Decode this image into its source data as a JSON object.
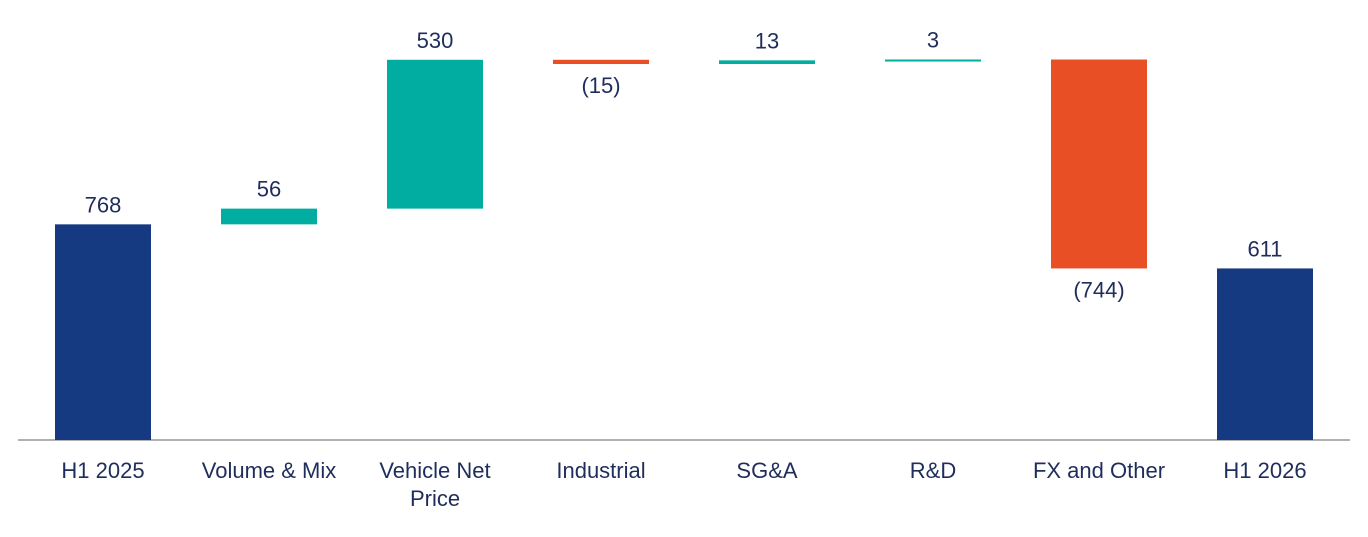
{
  "chart_data": {
    "type": "bar",
    "subtype": "waterfall",
    "categories": [
      "H1 2025",
      "Volume & Mix",
      "Vehicle Net Price",
      "Industrial",
      "SG&A",
      "R&D",
      "FX and Other",
      "H1 2026"
    ],
    "category_label_lines": [
      [
        "H1 2025"
      ],
      [
        "Volume & Mix"
      ],
      [
        "Vehicle Net",
        "Price"
      ],
      [
        "Industrial"
      ],
      [
        "SG&A"
      ],
      [
        "R&D"
      ],
      [
        "FX and Other"
      ],
      [
        "H1 2026"
      ]
    ],
    "values": [
      768,
      56,
      530,
      -15,
      13,
      3,
      -744,
      611
    ],
    "kinds": [
      "total",
      "delta",
      "delta",
      "delta",
      "delta",
      "delta",
      "delta",
      "total"
    ],
    "value_labels": [
      "768",
      "56",
      "530",
      "(15)",
      "13",
      "3",
      "(744)",
      "611"
    ],
    "xlabel": "",
    "ylabel": "",
    "title": "",
    "ylim": [
      0,
      1370
    ],
    "grid": false,
    "legend": "none",
    "colors": {
      "total": "#163a82",
      "increase": "#00ada0",
      "decrease": "#e84f25",
      "axis": "#b0b0b0",
      "text": "#1f2d5c"
    }
  }
}
